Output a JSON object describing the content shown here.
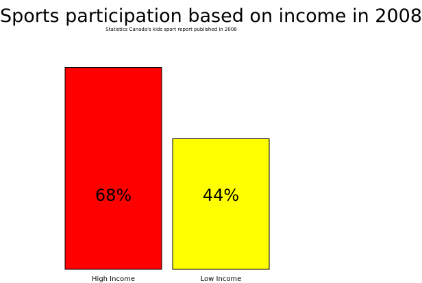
{
  "title": "Sports participation based on income in 2008",
  "subtitle": "Statistics Canada's kids sport report published in 2008",
  "chart_data": {
    "type": "bar",
    "title": "Sports participation based on income in 2008",
    "subtitle": "Statistics Canada's kids sport report published in 2008",
    "categories": [
      "High Income",
      "Low Income"
    ],
    "values": [
      68,
      44
    ],
    "value_labels": [
      "68%",
      "44%"
    ],
    "colors": [
      "#ff0000",
      "#ffff00"
    ],
    "ylim": [
      0,
      100
    ],
    "grid": false,
    "legend": "none"
  }
}
